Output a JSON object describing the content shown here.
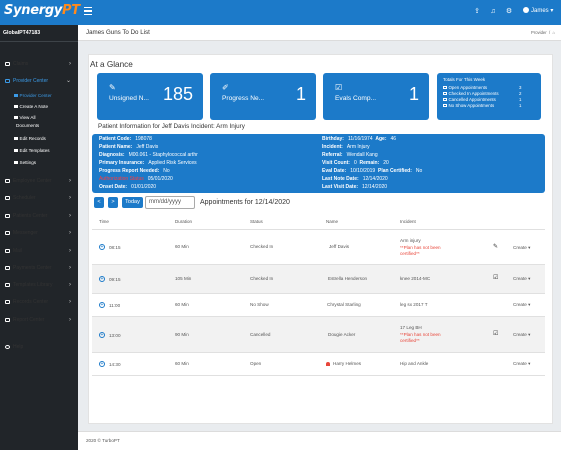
{
  "app": {
    "logo_main": "Synergy",
    "logo_accent": "PT",
    "user_name": "James",
    "user_caret": "▾"
  },
  "header": {
    "title": "James Guns To Do List",
    "breadcrumb": "Provider",
    "home_icon": "home-icon"
  },
  "sidebar": {
    "brand": "GlobalPT47183",
    "items": [
      {
        "label": "Claims",
        "icon": "claims-icon"
      },
      {
        "label": "Provider Center",
        "icon": "provider-icon"
      },
      {
        "label": "Employee Center",
        "icon": "employee-icon"
      },
      {
        "label": "Scheduler",
        "icon": "scheduler-icon"
      },
      {
        "label": "Patients Center",
        "icon": "patients-icon"
      },
      {
        "label": "Messenger",
        "icon": "messenger-icon"
      },
      {
        "label": "Mail",
        "icon": "mail-icon"
      },
      {
        "label": "Payments Center",
        "icon": "payments-icon"
      },
      {
        "label": "Templates Library",
        "icon": "templates-icon"
      },
      {
        "label": "Records Center",
        "icon": "records-icon"
      },
      {
        "label": "Report Center",
        "icon": "report-icon"
      },
      {
        "label": "Help",
        "icon": "help-icon"
      }
    ],
    "subitems": [
      "Provider Center",
      "Create A Note",
      "View All",
      "Documents",
      "Edit Records",
      "Edit Templates",
      "Settings"
    ]
  },
  "glance": {
    "title": "At a Glance",
    "tiles": [
      {
        "label": "Unsigned N...",
        "value": "185",
        "icon": "edit-icon"
      },
      {
        "label": "Progress Ne...",
        "value": "1",
        "icon": "pencil-icon"
      },
      {
        "label": "Evals Comp...",
        "value": "1",
        "icon": "check-icon"
      }
    ],
    "totals": {
      "title": "Totals For This Week",
      "rows": [
        {
          "label": "Open Appointments",
          "value": "3"
        },
        {
          "label": "Checked In Appointments",
          "value": "2"
        },
        {
          "label": "Cancelled Appointments",
          "value": "1"
        },
        {
          "label": "No Show Appointments",
          "value": "1"
        }
      ]
    }
  },
  "patient": {
    "heading": "Patient Information for Jeff Davis Incident: Arm Injury",
    "left": [
      {
        "k": "Patient Code:",
        "v": "198078"
      },
      {
        "k": "Patient Name:",
        "v": "Jeff Davis"
      },
      {
        "k": "Diagnosis:",
        "v": "M00.061 - Staphylococcal arthr"
      },
      {
        "k": "Primary Insurance:",
        "v": "Applied Risk Services"
      },
      {
        "k": "Progress Report Needed:",
        "v": "No"
      },
      {
        "k": "Authorization Status",
        "v": "05/01/2020"
      },
      {
        "k": "Onset Date:",
        "v": "01/01/2020"
      }
    ],
    "right": [
      {
        "k": "Birthday:",
        "v": "11/16/1974"
      },
      {
        "k": "Age:",
        "v": "46"
      },
      {
        "k": "Incident:",
        "v": "Arm Injury"
      },
      {
        "k": "Referral:",
        "v": "Wendall Kang"
      },
      {
        "k": "Visit Count:",
        "v": "0"
      },
      {
        "k": "Remain:",
        "v": "20"
      },
      {
        "k": "Eval Date:",
        "v": "10/10/2019"
      },
      {
        "k": "Plan Certified:",
        "v": "No"
      },
      {
        "k": "Last Note Date:",
        "v": "12/14/2020"
      },
      {
        "k": "Last Visit Date:",
        "v": "12/14/2020"
      }
    ]
  },
  "appointments": {
    "prev_label": "<",
    "next_label": ">",
    "today_label": "Today",
    "date_placeholder": "mm/dd/yyyy",
    "title": "Appointments for 12/14/2020",
    "columns": [
      "Time",
      "Duration",
      "Status",
      "Name",
      "Incident"
    ],
    "rows": [
      {
        "time": "08:15",
        "duration": "60 Min",
        "status": "Checked In",
        "name": "Jeff Davis",
        "incident": "Arm injury",
        "warn1": "**Plan has not been",
        "warn2": "certified**",
        "action": "Create",
        "icon": "edit-note-icon"
      },
      {
        "time": "09:15",
        "duration": "105 Min",
        "status": "Checked In",
        "name": "Estrella Henderson",
        "incident": "knee 2014-MC",
        "warn1": "",
        "warn2": "",
        "action": "Create",
        "icon": "signed-icon"
      },
      {
        "time": "11:00",
        "duration": "60 Min",
        "status": "No Show",
        "name": "Chrystal Starling",
        "incident": "leg sx 2017 T",
        "warn1": "",
        "warn2": "",
        "action": "Create",
        "icon": ""
      },
      {
        "time": "13:00",
        "duration": "90 Min",
        "status": "Cancelled",
        "name": "Dougie Acker",
        "incident": "17 Leg BH",
        "warn1": "**Plan has not been",
        "warn2": "certified**",
        "action": "Create",
        "icon": "signed-icon"
      },
      {
        "time": "14:30",
        "duration": "60 Min",
        "status": "Open",
        "name": "Harry Helmes",
        "incident": "Hip and Ankle",
        "warn1": "",
        "warn2": "",
        "action": "Create",
        "icon": ""
      }
    ]
  },
  "footer": {
    "text": "2020 © TurboPT"
  },
  "colors": {
    "primary": "#1c7ac9",
    "sidebar": "#212529",
    "accent": "#ff8a1c",
    "warning": "#e8463a"
  }
}
